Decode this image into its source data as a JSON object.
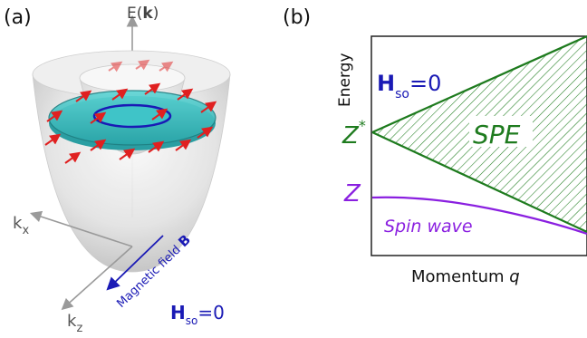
{
  "panel_a": {
    "label": "(a)",
    "energy_axis_prefix": "E(",
    "energy_axis_bold": "k",
    "energy_axis_suffix": ")",
    "kx_base": "k",
    "kx_sub": "x",
    "kz_base": "k",
    "kz_sub": "z",
    "field_label": "Magnetic field ",
    "field_bold": "B",
    "hso_base": "H",
    "hso_sub": "so",
    "hso_value": "=0"
  },
  "panel_b": {
    "label": "(b)",
    "y_axis_label": "Energy",
    "x_axis_label_prefix": "Momentum ",
    "x_axis_label_var": "q",
    "hso_base": "H",
    "hso_sub": "so",
    "hso_value": "=0",
    "zstar_base": "Z",
    "zstar_sup": "*",
    "z_label": "Z",
    "spe_label": "SPE",
    "spin_wave_label": "Spin wave",
    "colors": {
      "spe": "#1e7b1e",
      "spin_wave": "#8a1fe0",
      "hso": "#1f1fb0"
    }
  }
}
